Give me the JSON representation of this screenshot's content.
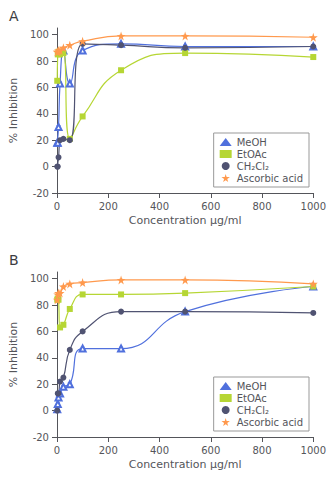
{
  "chart_data": [
    {
      "type": "line",
      "title": "A",
      "xlabel": "Concentration μg/ml",
      "ylabel": "% Inhibition",
      "x": [
        1,
        3,
        6,
        12,
        25,
        50,
        100,
        250,
        500,
        1000
      ],
      "series": [
        {
          "name": "MeOH",
          "marker": "triangle-open",
          "values": [
            18,
            18,
            30,
            63,
            88,
            63,
            88,
            93,
            91,
            91
          ],
          "yerr": [
            1,
            1,
            1,
            1,
            1,
            1,
            1,
            1,
            1,
            1
          ]
        },
        {
          "name": "EtOAc",
          "marker": "square",
          "values": [
            65,
            85,
            87,
            85,
            86,
            21,
            38,
            73,
            86,
            83
          ],
          "yerr": [
            1,
            1,
            1,
            1,
            1,
            1,
            1,
            1,
            1,
            1
          ]
        },
        {
          "name": "CH₂Cl₂",
          "marker": "circle",
          "values": [
            0,
            0,
            7,
            20,
            21,
            20,
            93,
            92,
            90,
            91
          ],
          "yerr": [
            0.5,
            0.5,
            1,
            1,
            1,
            1,
            1,
            1,
            1,
            1
          ]
        },
        {
          "name": "Ascorbic acid",
          "marker": "star",
          "values": [
            87,
            87,
            88,
            88,
            90,
            92,
            95,
            99,
            99,
            98
          ],
          "yerr": [
            0.5,
            0.5,
            0.5,
            0.5,
            0.5,
            0.5,
            0.5,
            0.5,
            0.5,
            0.5
          ]
        }
      ],
      "line_style": "smooth",
      "xlim": [
        0,
        1000
      ],
      "xticks": [
        0,
        200,
        400,
        600,
        800,
        1000
      ],
      "ylim": [
        -20,
        105
      ],
      "yticks": [
        -20,
        0,
        20,
        40,
        60,
        80,
        100
      ],
      "legend": "lower right"
    },
    {
      "type": "line",
      "title": "B",
      "xlabel": "Concentration μg/ml",
      "ylabel": "% Inhibition",
      "x": [
        1,
        3,
        6,
        12,
        25,
        50,
        100,
        250,
        500,
        1000
      ],
      "series": [
        {
          "name": "MeOH",
          "marker": "triangle-open",
          "values": [
            1,
            5,
            10,
            13,
            18,
            20,
            47,
            47,
            75,
            94
          ],
          "yerr": [
            0.5,
            1,
            1,
            1,
            1,
            1,
            1,
            1,
            1,
            1
          ]
        },
        {
          "name": "EtOAc",
          "marker": "square",
          "values": [
            84,
            85,
            84,
            63,
            65,
            77,
            88,
            88,
            89,
            94
          ],
          "yerr": [
            1,
            1,
            1,
            1,
            1,
            1,
            1,
            1,
            1,
            1
          ]
        },
        {
          "name": "CH₂Cl₂",
          "marker": "circle",
          "values": [
            0,
            13,
            13,
            22,
            25,
            46,
            60,
            75,
            75,
            74
          ],
          "yerr": [
            0.5,
            1,
            1,
            1,
            1,
            1,
            1,
            1,
            1,
            1
          ]
        },
        {
          "name": "Ascorbic acid",
          "marker": "star",
          "values": [
            84,
            88,
            89,
            89,
            94,
            96,
            97,
            99,
            99,
            96
          ],
          "yerr": [
            0.5,
            0.5,
            0.5,
            0.5,
            0.5,
            0.5,
            0.5,
            0.5,
            0.5,
            0.5
          ]
        }
      ],
      "line_style": "smooth",
      "xlim": [
        0,
        1000
      ],
      "xticks": [
        0,
        200,
        400,
        600,
        800,
        1000
      ],
      "ylim": [
        -20,
        105
      ],
      "yticks": [
        -20,
        0,
        20,
        40,
        60,
        80,
        100
      ],
      "legend": "lower right"
    }
  ]
}
